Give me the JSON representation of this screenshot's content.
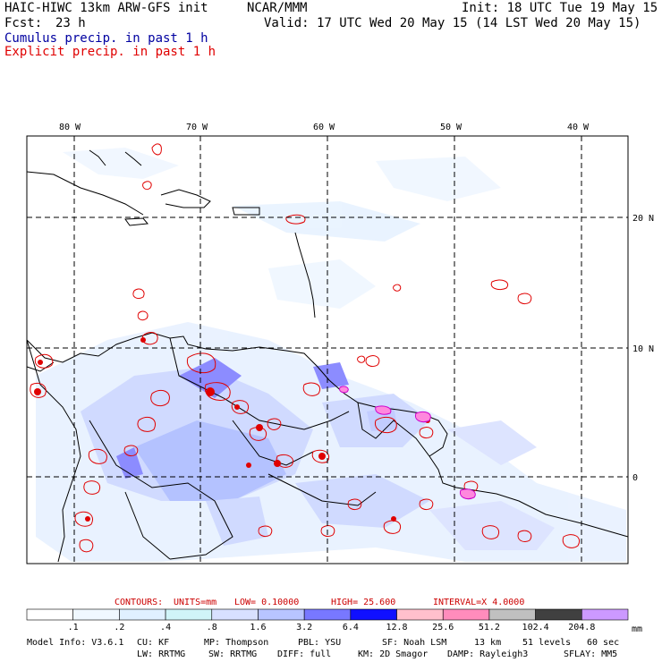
{
  "header": {
    "model": "HAIC-HIWC 13km ARW-GFS init",
    "org": "NCAR/MMM",
    "fcst_label": "Fcst:",
    "fcst_value": "23 h",
    "init": "Init: 18 UTC Tue 19 May 15",
    "valid": "Valid: 17 UTC Wed 20 May 15 (14 LST Wed 20 May 15)",
    "cumulus_legend": "Cumulus precip. in past 1 h",
    "explicit_legend": "Explicit precip. in past 1 h"
  },
  "map": {
    "lon_labels": [
      "80 W",
      "70 W",
      "60 W",
      "50 W",
      "40 W"
    ],
    "lat_labels": [
      "20 N",
      "10 N",
      "0"
    ]
  },
  "contours": {
    "label": "CONTOURS:",
    "units": "UNITS=mm",
    "low": "LOW= 0.10000",
    "high": "HIGH= 25.600",
    "interval": "INTERVAL=X  4.0000"
  },
  "colorbar": {
    "ticks": [
      ".1",
      ".2",
      ".4",
      ".8",
      "1.6",
      "3.2",
      "6.4",
      "12.8",
      "25.6",
      "51.2",
      "102.4",
      "204.8"
    ],
    "unit": "mm",
    "colors": [
      "#ffffff",
      "#f0f8ff",
      "#e0f0ff",
      "#d0f4f8",
      "#d8e0ff",
      "#b8c4ff",
      "#7878ff",
      "#1010ff",
      "#ffc0cc",
      "#ff8cbc",
      "#c0c0c0",
      "#404040",
      "#cc99ff"
    ]
  },
  "colors": {
    "cumulus": "#0000a0",
    "explicit": "#e00000",
    "contour_label": "#cc0000",
    "magenta_label": "#cc00cc"
  },
  "model_info": {
    "line1": [
      "Model Info: V3.6.1",
      "CU: KF",
      "MP: Thompson",
      "PBL: YSU",
      "SF: Noah LSM",
      "13 km",
      "51 levels",
      "60 sec"
    ],
    "line2": [
      "LW: RRTMG",
      "SW: RRTMG",
      "DIFF: full",
      "KM: 2D Smagor",
      "DAMP: Rayleigh3",
      "SFLAY: MM5"
    ]
  }
}
